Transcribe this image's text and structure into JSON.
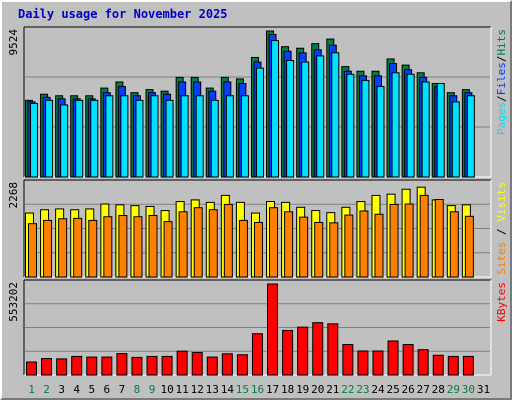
{
  "title": "Daily usage for November 2025",
  "chart_data": {
    "type": "bar",
    "categories": [
      "1",
      "2",
      "3",
      "4",
      "5",
      "6",
      "7",
      "8",
      "9",
      "10",
      "11",
      "12",
      "13",
      "14",
      "15",
      "16",
      "17",
      "18",
      "19",
      "20",
      "21",
      "22",
      "23",
      "24",
      "25",
      "26",
      "27",
      "28",
      "29",
      "30",
      "31"
    ],
    "weekend_days": [
      "1",
      "2",
      "8",
      "9",
      "15",
      "16",
      "22",
      "23",
      "29",
      "30"
    ],
    "colors": {
      "hits": "#008040",
      "files": "#0040ff",
      "pages": "#00e0ff",
      "visits": "#ffff00",
      "sites": "#ff8000",
      "kbytes": "#ff0000",
      "weekday_label": "#000000",
      "weekend_label": "#008040"
    },
    "panels": [
      {
        "name": "hits-files-pages",
        "max_label": "9524",
        "ylim": [
          0,
          9524
        ],
        "series": [
          {
            "name": "Hits",
            "values": [
              5000,
              5400,
              5300,
              5300,
              5300,
              5800,
              6200,
              5500,
              5700,
              5600,
              6500,
              6500,
              5800,
              6500,
              6400,
              7800,
              9524,
              8500,
              8400,
              8700,
              9000,
              7200,
              6900,
              6900,
              7700,
              7300,
              6800,
              6100,
              5500,
              5700,
              0
            ]
          },
          {
            "name": "Files",
            "values": [
              4900,
              5200,
              5100,
              5100,
              5100,
              5500,
              5900,
              5300,
              5500,
              5400,
              6200,
              6200,
              5600,
              6200,
              6100,
              7500,
              9300,
              8200,
              8100,
              8300,
              8600,
              6900,
              6600,
              6600,
              7400,
              7000,
              6500,
              5900,
              5300,
              5500,
              0
            ]
          },
          {
            "name": "Pages",
            "values": [
              4800,
              5000,
              4700,
              5000,
              5000,
              5300,
              5300,
              5000,
              5300,
              5000,
              5300,
              5300,
              5000,
              5300,
              5300,
              7100,
              8900,
              7600,
              7500,
              7900,
              8100,
              6700,
              6300,
              5900,
              6800,
              6700,
              6200,
              6100,
              4900,
              5300,
              0
            ]
          }
        ]
      },
      {
        "name": "visits-sites",
        "max_label": "2268",
        "ylim": [
          0,
          2268
        ],
        "series": [
          {
            "name": "Visits",
            "values": [
              1560,
              1640,
              1660,
              1640,
              1660,
              1780,
              1760,
              1740,
              1720,
              1620,
              1840,
              1880,
              1820,
              1990,
              1820,
              1560,
              1840,
              1820,
              1700,
              1620,
              1570,
              1700,
              1840,
              1990,
              2020,
              2140,
              2190,
              1880,
              1740,
              1760,
              0
            ]
          },
          {
            "name": "Sites",
            "values": [
              1300,
              1380,
              1420,
              1430,
              1380,
              1470,
              1500,
              1470,
              1500,
              1350,
              1590,
              1690,
              1640,
              1770,
              1380,
              1330,
              1690,
              1590,
              1460,
              1330,
              1320,
              1510,
              1610,
              1530,
              1770,
              1780,
              1990,
              1890,
              1590,
              1480,
              0
            ]
          }
        ]
      },
      {
        "name": "kbytes",
        "max_label": "553202",
        "ylim": [
          0,
          553202
        ],
        "series": [
          {
            "name": "KBytes",
            "values": [
              79000,
              100000,
              98000,
              113000,
              109000,
              109000,
              130000,
              107000,
              113000,
              113000,
              145000,
              137000,
              109000,
              129000,
              123000,
              251000,
              553202,
              271000,
              291000,
              318000,
              311000,
              185000,
              146000,
              146000,
              207000,
              185000,
              154000,
              120000,
              113000,
              113000,
              0
            ]
          }
        ]
      }
    ]
  }
}
